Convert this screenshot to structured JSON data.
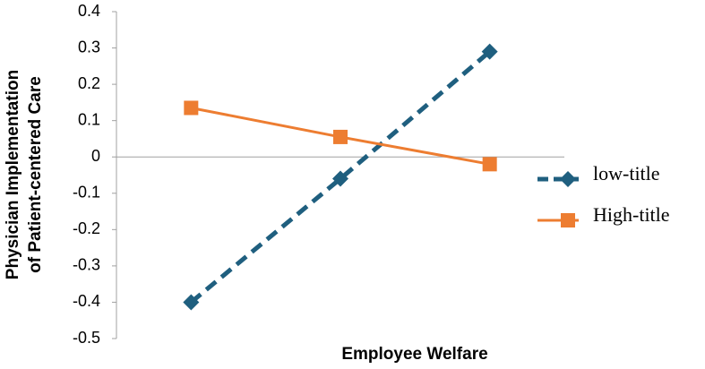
{
  "chart_data": {
    "type": "line",
    "x_label": "Employee Welfare",
    "y_label": [
      "Physician Implementation",
      "of Patient-centered Care"
    ],
    "categories": [
      null,
      null,
      null
    ],
    "series": [
      {
        "name": "low-title",
        "color": "#1f5f7f",
        "dash": true,
        "marker": "diamond",
        "values": [
          -0.4,
          -0.06,
          0.29
        ]
      },
      {
        "name": "High-title",
        "color": "#ed7d31",
        "dash": false,
        "marker": "square",
        "values": [
          0.135,
          0.055,
          -0.02
        ]
      }
    ],
    "ylim": [
      -0.5,
      0.4
    ],
    "yticks": [
      -0.5,
      -0.4,
      -0.3,
      -0.2,
      -0.1,
      0,
      0.1,
      0.2,
      0.3,
      0.4
    ],
    "grid": false,
    "legend": "right"
  }
}
